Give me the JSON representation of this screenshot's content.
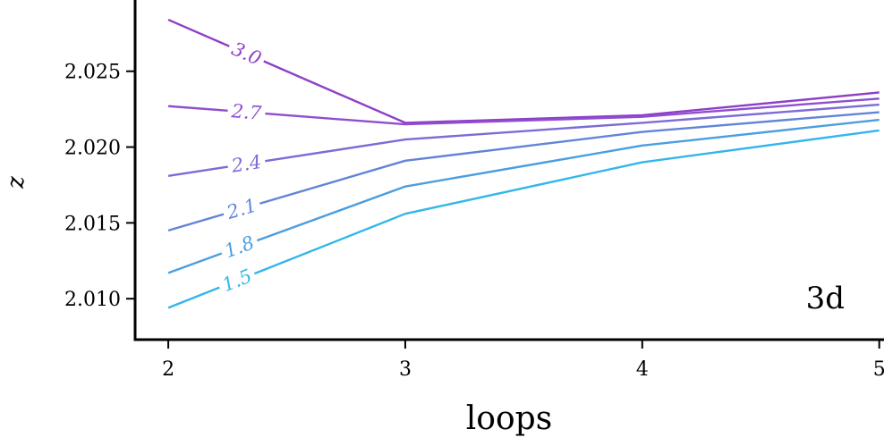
{
  "chart_data": {
    "type": "line",
    "xlabel": "loops",
    "ylabel": "z",
    "annotation": "3d",
    "x": [
      2,
      3,
      4,
      5
    ],
    "x_ticks": [
      "2",
      "3",
      "4",
      "5"
    ],
    "y_ticks": [
      "2.010",
      "2.015",
      "2.020",
      "2.025"
    ],
    "xlim": [
      1.86,
      5.02
    ],
    "ylim": [
      2.0073,
      2.0297
    ],
    "series": [
      {
        "name": "3.0",
        "color": "#8e3fc7",
        "values": [
          2.0284,
          2.0216,
          2.0221,
          2.0236
        ]
      },
      {
        "name": "2.7",
        "color": "#8f4ecf",
        "values": [
          2.0227,
          2.0215,
          2.022,
          2.0232
        ]
      },
      {
        "name": "2.4",
        "color": "#7d6bd6",
        "values": [
          2.0181,
          2.0205,
          2.0216,
          2.0228
        ]
      },
      {
        "name": "2.1",
        "color": "#6284d8",
        "values": [
          2.0145,
          2.0191,
          2.021,
          2.0223
        ]
      },
      {
        "name": "1.8",
        "color": "#4a9ee0",
        "values": [
          2.0117,
          2.0174,
          2.0201,
          2.0218
        ]
      },
      {
        "name": "1.5",
        "color": "#33b6ea",
        "values": [
          2.0094,
          2.0156,
          2.019,
          2.0211
        ]
      }
    ]
  }
}
